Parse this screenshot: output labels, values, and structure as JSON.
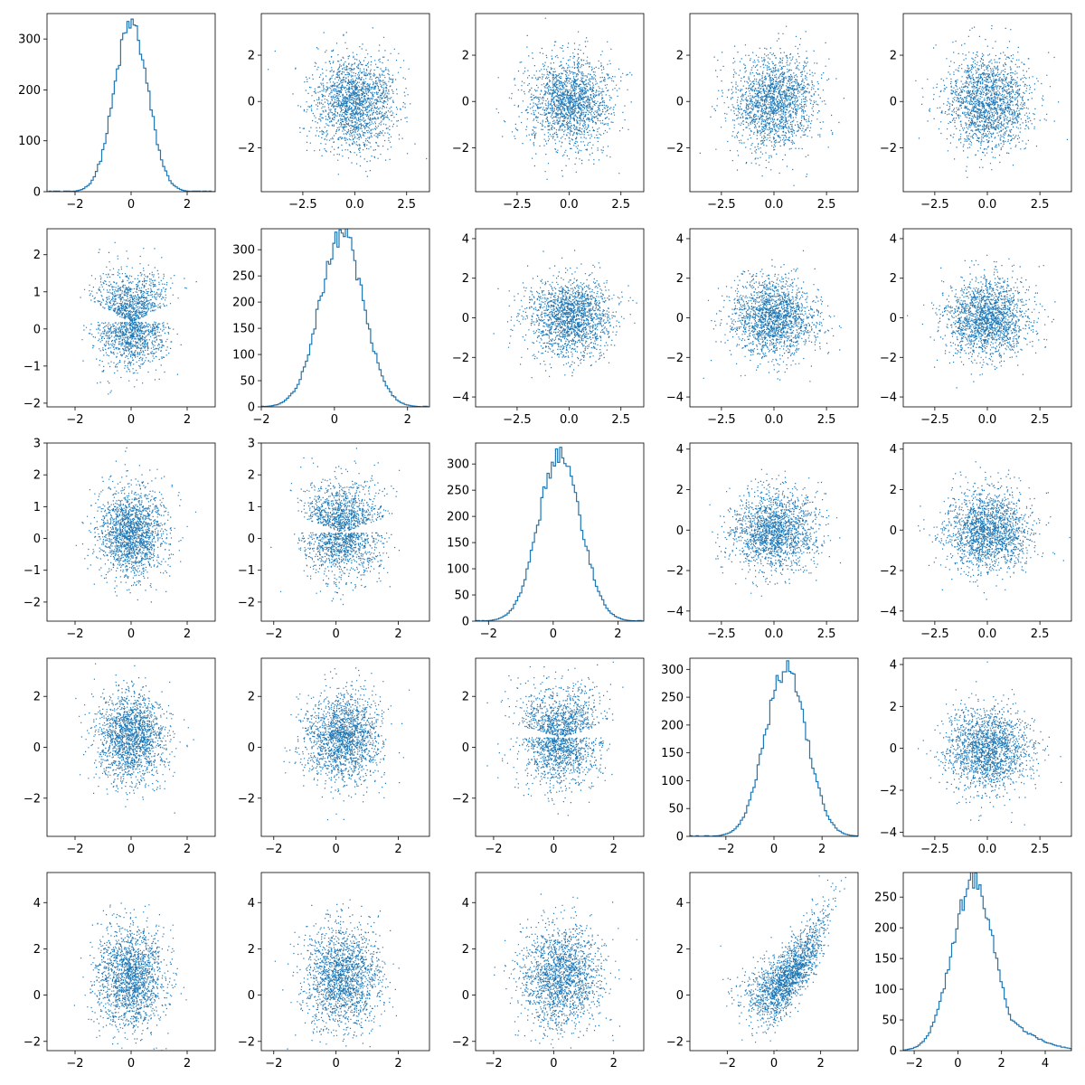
{
  "figure": {
    "background": "#ffffff",
    "series_color": "#1f77b4",
    "layout": "5x5 pair-plot grid: histograms on the diagonal, scatter plots off the diagonal"
  },
  "chart_data": [
    {
      "id": "r0c0",
      "type": "histogram",
      "row": 0,
      "col": 0,
      "x_range": [
        -3.0,
        3.0
      ],
      "ylim": [
        0,
        350
      ],
      "xticks": [
        -2,
        0,
        2
      ],
      "yticks": [
        0,
        100,
        200,
        300
      ],
      "dist": {
        "mean": 0.0,
        "std": 0.6,
        "peak": 330
      },
      "title": "",
      "xlabel": "",
      "ylabel": ""
    },
    {
      "id": "r0c1",
      "type": "scatter",
      "row": 0,
      "col": 1,
      "xlim": [
        -4.5,
        3.6
      ],
      "ylim": [
        -3.9,
        3.8
      ],
      "xticks": [
        -2.5,
        0.0,
        2.5
      ],
      "yticks": [
        -2,
        0,
        2
      ],
      "dist": {
        "x_mean": 0.0,
        "x_std": 1.0,
        "y_mean": 0.0,
        "y_std": 1.0,
        "n": 1800
      },
      "title": "",
      "xlabel": "",
      "ylabel": ""
    },
    {
      "id": "r0c2",
      "type": "scatter",
      "row": 0,
      "col": 2,
      "xlim": [
        -4.5,
        3.6
      ],
      "ylim": [
        -3.9,
        3.8
      ],
      "xticks": [
        -2.5,
        0.0,
        2.5
      ],
      "yticks": [
        -2,
        0,
        2
      ],
      "dist": {
        "x_mean": 0.0,
        "x_std": 1.0,
        "y_mean": 0.0,
        "y_std": 1.0,
        "n": 1800
      },
      "title": "",
      "xlabel": "",
      "ylabel": ""
    },
    {
      "id": "r0c3",
      "type": "scatter",
      "row": 0,
      "col": 3,
      "xlim": [
        -4.0,
        4.0
      ],
      "ylim": [
        -3.9,
        3.8
      ],
      "xticks": [
        -2.5,
        0.0,
        2.5
      ],
      "yticks": [
        -2,
        0,
        2
      ],
      "dist": {
        "x_mean": 0.0,
        "x_std": 1.0,
        "y_mean": 0.0,
        "y_std": 1.0,
        "n": 1800
      },
      "title": "",
      "xlabel": "",
      "ylabel": ""
    },
    {
      "id": "r0c4",
      "type": "scatter",
      "row": 0,
      "col": 4,
      "xlim": [
        -4.0,
        4.0
      ],
      "ylim": [
        -3.9,
        3.8
      ],
      "xticks": [
        -2.5,
        0.0,
        2.5
      ],
      "yticks": [
        -2,
        0,
        2
      ],
      "dist": {
        "x_mean": 0.0,
        "x_std": 1.0,
        "y_mean": 0.0,
        "y_std": 1.0,
        "n": 1800
      },
      "title": "",
      "xlabel": "",
      "ylabel": ""
    },
    {
      "id": "r1c0",
      "type": "scatter",
      "row": 1,
      "col": 0,
      "xlim": [
        -3.0,
        3.0
      ],
      "ylim": [
        -2.1,
        2.7
      ],
      "xticks": [
        -2,
        0,
        2
      ],
      "yticks": [
        -2,
        -1,
        0,
        1,
        2
      ],
      "dist": {
        "x_mean": 0.0,
        "x_std": 0.6,
        "y_mean": 0.2,
        "y_std": 0.6,
        "n": 1800,
        "triangle": true
      },
      "title": "",
      "xlabel": "",
      "ylabel": ""
    },
    {
      "id": "r1c1",
      "type": "histogram",
      "row": 1,
      "col": 1,
      "x_range": [
        -2.0,
        2.6
      ],
      "ylim": [
        0,
        340
      ],
      "xticks": [
        -2,
        0,
        2
      ],
      "yticks": [
        0,
        50,
        100,
        150,
        200,
        250,
        300
      ],
      "dist": {
        "mean": 0.2,
        "std": 0.6,
        "peak": 330
      },
      "title": "",
      "xlabel": "",
      "ylabel": ""
    },
    {
      "id": "r1c2",
      "type": "scatter",
      "row": 1,
      "col": 2,
      "xlim": [
        -4.5,
        3.6
      ],
      "ylim": [
        -4.5,
        4.5
      ],
      "xticks": [
        -2.5,
        0.0,
        2.5
      ],
      "yticks": [
        -4,
        -2,
        0,
        2,
        4
      ],
      "dist": {
        "x_mean": 0.0,
        "x_std": 1.0,
        "y_mean": 0.0,
        "y_std": 1.0,
        "n": 1800
      },
      "title": "",
      "xlabel": "",
      "ylabel": ""
    },
    {
      "id": "r1c3",
      "type": "scatter",
      "row": 1,
      "col": 3,
      "xlim": [
        -4.0,
        4.0
      ],
      "ylim": [
        -4.5,
        4.5
      ],
      "xticks": [
        -2.5,
        0.0,
        2.5
      ],
      "yticks": [
        -4,
        -2,
        0,
        2,
        4
      ],
      "dist": {
        "x_mean": 0.0,
        "x_std": 1.0,
        "y_mean": 0.0,
        "y_std": 1.0,
        "n": 1800
      },
      "title": "",
      "xlabel": "",
      "ylabel": ""
    },
    {
      "id": "r1c4",
      "type": "scatter",
      "row": 1,
      "col": 4,
      "xlim": [
        -4.0,
        4.0
      ],
      "ylim": [
        -4.5,
        4.5
      ],
      "xticks": [
        -2.5,
        0.0,
        2.5
      ],
      "yticks": [
        -4,
        -2,
        0,
        2,
        4
      ],
      "dist": {
        "x_mean": 0.0,
        "x_std": 1.0,
        "y_mean": 0.0,
        "y_std": 1.0,
        "n": 1800
      },
      "title": "",
      "xlabel": "",
      "ylabel": ""
    },
    {
      "id": "r2c0",
      "type": "scatter",
      "row": 2,
      "col": 0,
      "xlim": [
        -3.0,
        3.0
      ],
      "ylim": [
        -2.6,
        3.0
      ],
      "xticks": [
        -2,
        0,
        2
      ],
      "yticks": [
        -2,
        -1,
        0,
        1,
        2,
        3
      ],
      "dist": {
        "x_mean": 0.0,
        "x_std": 0.6,
        "y_mean": 0.2,
        "y_std": 0.7,
        "n": 1800
      },
      "title": "",
      "xlabel": "",
      "ylabel": ""
    },
    {
      "id": "r2c1",
      "type": "scatter",
      "row": 2,
      "col": 1,
      "xlim": [
        -2.4,
        3.0
      ],
      "ylim": [
        -2.6,
        3.0
      ],
      "xticks": [
        -2,
        0,
        2
      ],
      "yticks": [
        -2,
        -1,
        0,
        1,
        2,
        3
      ],
      "dist": {
        "x_mean": 0.2,
        "x_std": 0.6,
        "y_mean": 0.2,
        "y_std": 0.7,
        "n": 1800,
        "triangle": true
      },
      "title": "",
      "xlabel": "",
      "ylabel": ""
    },
    {
      "id": "r2c2",
      "type": "histogram",
      "row": 2,
      "col": 2,
      "x_range": [
        -2.4,
        2.8
      ],
      "ylim": [
        0,
        340
      ],
      "xticks": [
        -2,
        0,
        2
      ],
      "yticks": [
        0,
        50,
        100,
        150,
        200,
        250,
        300
      ],
      "dist": {
        "mean": 0.2,
        "std": 0.65,
        "peak": 320
      },
      "title": "",
      "xlabel": "",
      "ylabel": ""
    },
    {
      "id": "r2c3",
      "type": "scatter",
      "row": 2,
      "col": 3,
      "xlim": [
        -4.0,
        4.0
      ],
      "ylim": [
        -4.5,
        4.3
      ],
      "xticks": [
        -2.5,
        0.0,
        2.5
      ],
      "yticks": [
        -4,
        -2,
        0,
        2,
        4
      ],
      "dist": {
        "x_mean": 0.0,
        "x_std": 1.0,
        "y_mean": 0.0,
        "y_std": 1.0,
        "n": 1800
      },
      "title": "",
      "xlabel": "",
      "ylabel": ""
    },
    {
      "id": "r2c4",
      "type": "scatter",
      "row": 2,
      "col": 4,
      "xlim": [
        -4.0,
        4.0
      ],
      "ylim": [
        -4.5,
        4.3
      ],
      "xticks": [
        -2.5,
        0.0,
        2.5
      ],
      "yticks": [
        -4,
        -2,
        0,
        2,
        4
      ],
      "dist": {
        "x_mean": 0.0,
        "x_std": 1.0,
        "y_mean": 0.0,
        "y_std": 1.0,
        "n": 1800
      },
      "title": "",
      "xlabel": "",
      "ylabel": ""
    },
    {
      "id": "r3c0",
      "type": "scatter",
      "row": 3,
      "col": 0,
      "xlim": [
        -3.0,
        3.0
      ],
      "ylim": [
        -3.5,
        3.5
      ],
      "xticks": [
        -2,
        0,
        2
      ],
      "yticks": [
        -2,
        0,
        2
      ],
      "dist": {
        "x_mean": 0.0,
        "x_std": 0.6,
        "y_mean": 0.4,
        "y_std": 0.9,
        "n": 1800
      },
      "title": "",
      "xlabel": "",
      "ylabel": ""
    },
    {
      "id": "r3c1",
      "type": "scatter",
      "row": 3,
      "col": 1,
      "xlim": [
        -2.4,
        3.0
      ],
      "ylim": [
        -3.5,
        3.5
      ],
      "xticks": [
        -2,
        0,
        2
      ],
      "yticks": [
        -2,
        0,
        2
      ],
      "dist": {
        "x_mean": 0.2,
        "x_std": 0.6,
        "y_mean": 0.4,
        "y_std": 0.9,
        "n": 1800
      },
      "title": "",
      "xlabel": "",
      "ylabel": ""
    },
    {
      "id": "r3c2",
      "type": "scatter",
      "row": 3,
      "col": 2,
      "xlim": [
        -2.6,
        3.0
      ],
      "ylim": [
        -3.5,
        3.5
      ],
      "xticks": [
        -2,
        0,
        2
      ],
      "yticks": [
        -2,
        0,
        2
      ],
      "dist": {
        "x_mean": 0.2,
        "x_std": 0.65,
        "y_mean": 0.4,
        "y_std": 0.9,
        "n": 1800,
        "triangle": true
      },
      "title": "",
      "xlabel": "",
      "ylabel": ""
    },
    {
      "id": "r3c3",
      "type": "histogram",
      "row": 3,
      "col": 3,
      "x_range": [
        -3.5,
        3.5
      ],
      "ylim": [
        0,
        320
      ],
      "xticks": [
        -2,
        0,
        2
      ],
      "yticks": [
        0,
        50,
        100,
        150,
        200,
        250,
        300
      ],
      "dist": {
        "mean": 0.5,
        "std": 0.85,
        "peak": 305
      },
      "title": "",
      "xlabel": "",
      "ylabel": ""
    },
    {
      "id": "r3c4",
      "type": "scatter",
      "row": 3,
      "col": 4,
      "xlim": [
        -4.0,
        4.0
      ],
      "ylim": [
        -4.2,
        4.3
      ],
      "xticks": [
        -2.5,
        0.0,
        2.5
      ],
      "yticks": [
        -4,
        -2,
        0,
        2,
        4
      ],
      "dist": {
        "x_mean": 0.0,
        "x_std": 1.0,
        "y_mean": 0.0,
        "y_std": 1.0,
        "n": 1800
      },
      "title": "",
      "xlabel": "",
      "ylabel": ""
    },
    {
      "id": "r4c0",
      "type": "scatter",
      "row": 4,
      "col": 0,
      "xlim": [
        -3.0,
        3.0
      ],
      "ylim": [
        -2.4,
        5.3
      ],
      "xticks": [
        -2,
        0,
        2
      ],
      "yticks": [
        -2,
        0,
        2,
        4
      ],
      "dist": {
        "x_mean": 0.0,
        "x_std": 0.6,
        "y_mean": 0.8,
        "y_std": 1.1,
        "n": 1800
      },
      "title": "",
      "xlabel": "",
      "ylabel": ""
    },
    {
      "id": "r4c1",
      "type": "scatter",
      "row": 4,
      "col": 1,
      "xlim": [
        -2.4,
        3.0
      ],
      "ylim": [
        -2.4,
        5.3
      ],
      "xticks": [
        -2,
        0,
        2
      ],
      "yticks": [
        -2,
        0,
        2,
        4
      ],
      "dist": {
        "x_mean": 0.2,
        "x_std": 0.6,
        "y_mean": 0.8,
        "y_std": 1.1,
        "n": 1800
      },
      "title": "",
      "xlabel": "",
      "ylabel": ""
    },
    {
      "id": "r4c2",
      "type": "scatter",
      "row": 4,
      "col": 2,
      "xlim": [
        -2.6,
        3.0
      ],
      "ylim": [
        -2.4,
        5.3
      ],
      "xticks": [
        -2,
        0,
        2
      ],
      "yticks": [
        -2,
        0,
        2,
        4
      ],
      "dist": {
        "x_mean": 0.2,
        "x_std": 0.65,
        "y_mean": 0.8,
        "y_std": 1.1,
        "n": 1800
      },
      "title": "",
      "xlabel": "",
      "ylabel": ""
    },
    {
      "id": "r4c3",
      "type": "scatter",
      "row": 4,
      "col": 3,
      "xlim": [
        -3.6,
        3.6
      ],
      "ylim": [
        -2.4,
        5.3
      ],
      "xticks": [
        -2,
        0,
        2
      ],
      "yticks": [
        -2,
        0,
        2,
        4
      ],
      "dist": {
        "x_mean": 0.5,
        "x_std": 0.85,
        "y_mean": 0.8,
        "y_std": 1.1,
        "n": 1800,
        "curved": true
      },
      "title": "",
      "xlabel": "",
      "ylabel": ""
    },
    {
      "id": "r4c4",
      "type": "histogram",
      "row": 4,
      "col": 4,
      "x_range": [
        -2.5,
        5.2
      ],
      "ylim": [
        0,
        290
      ],
      "xticks": [
        -2,
        0,
        2,
        4
      ],
      "yticks": [
        0,
        50,
        100,
        150,
        200,
        250
      ],
      "dist": {
        "mean": 0.7,
        "std": 0.95,
        "peak": 275,
        "right_skew": true
      },
      "title": "",
      "xlabel": "",
      "ylabel": ""
    }
  ]
}
